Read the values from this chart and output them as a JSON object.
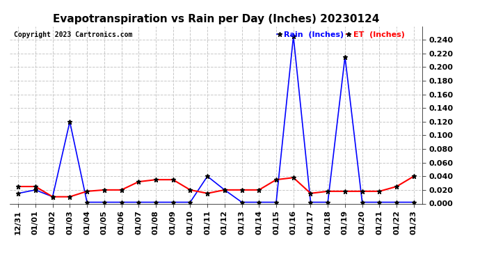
{
  "title": "Evapotranspiration vs Rain per Day (Inches) 20230124",
  "copyright": "Copyright 2023 Cartronics.com",
  "legend_rain": "Rain  (Inches)",
  "legend_et": "ET  (Inches)",
  "dates": [
    "12/31",
    "01/01",
    "01/02",
    "01/03",
    "01/04",
    "01/05",
    "01/06",
    "01/07",
    "01/08",
    "01/09",
    "01/10",
    "01/11",
    "01/12",
    "01/13",
    "01/14",
    "01/15",
    "01/16",
    "01/17",
    "01/18",
    "01/19",
    "01/20",
    "01/21",
    "01/22",
    "01/23"
  ],
  "rain": [
    0.015,
    0.02,
    0.01,
    0.12,
    0.002,
    0.002,
    0.002,
    0.002,
    0.002,
    0.002,
    0.002,
    0.04,
    0.02,
    0.002,
    0.002,
    0.002,
    0.245,
    0.002,
    0.002,
    0.215,
    0.002,
    0.002,
    0.002,
    0.002
  ],
  "et": [
    0.025,
    0.025,
    0.01,
    0.01,
    0.018,
    0.02,
    0.02,
    0.032,
    0.035,
    0.035,
    0.02,
    0.015,
    0.02,
    0.02,
    0.02,
    0.035,
    0.038,
    0.015,
    0.018,
    0.018,
    0.018,
    0.018,
    0.025,
    0.04
  ],
  "rain_color": "#0000ff",
  "et_color": "#ff0000",
  "ylim": [
    0.0,
    0.26
  ],
  "yticks": [
    0.0,
    0.02,
    0.04,
    0.06,
    0.08,
    0.1,
    0.12,
    0.14,
    0.16,
    0.18,
    0.2,
    0.22,
    0.24
  ],
  "background_color": "#ffffff",
  "grid_color": "#c8c8c8",
  "title_fontsize": 11,
  "tick_fontsize": 8,
  "legend_fontsize": 8,
  "copyright_fontsize": 7
}
